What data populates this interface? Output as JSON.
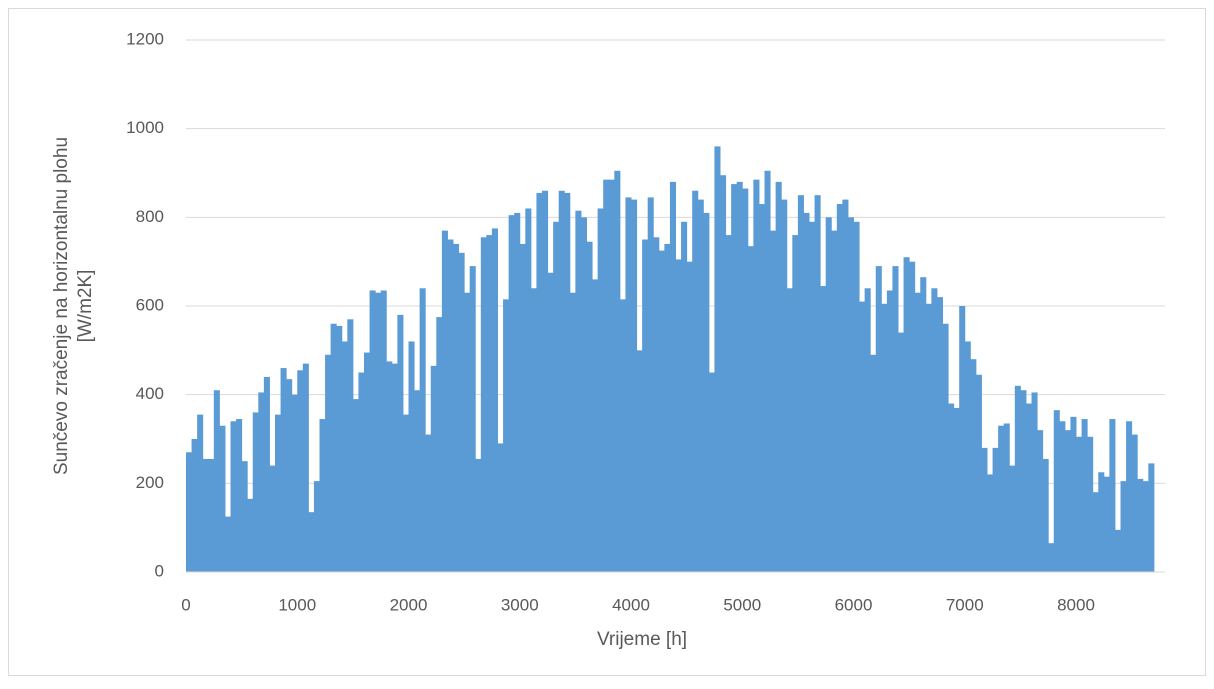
{
  "chart_data": {
    "type": "column",
    "x_label": "Vrijeme [h]",
    "y_label": [
      "Sunčevo zračenje na horizontalnu plohu",
      "[W/m2K]"
    ],
    "color": "#5b9bd5",
    "grid": true,
    "xlim": [
      0,
      8800
    ],
    "xticks": [
      0,
      1000,
      2000,
      3000,
      4000,
      5000,
      6000,
      7000,
      8000
    ],
    "ylim": [
      0,
      1200
    ],
    "yticks": [
      0,
      200,
      400,
      600,
      800,
      1000,
      1200
    ],
    "bar_width": 50,
    "x": [
      0,
      50,
      100,
      150,
      200,
      250,
      300,
      350,
      400,
      450,
      500,
      550,
      600,
      650,
      700,
      750,
      800,
      850,
      900,
      950,
      1000,
      1050,
      1100,
      1150,
      1200,
      1250,
      1300,
      1350,
      1400,
      1450,
      1500,
      1550,
      1600,
      1650,
      1700,
      1750,
      1800,
      1850,
      1900,
      1950,
      2000,
      2050,
      2100,
      2150,
      2200,
      2250,
      2300,
      2350,
      2400,
      2450,
      2500,
      2550,
      2600,
      2650,
      2700,
      2750,
      2800,
      2850,
      2900,
      2950,
      3000,
      3050,
      3100,
      3150,
      3200,
      3250,
      3300,
      3350,
      3400,
      3450,
      3500,
      3550,
      3600,
      3650,
      3700,
      3750,
      3800,
      3850,
      3900,
      3950,
      4000,
      4050,
      4100,
      4150,
      4200,
      4250,
      4300,
      4350,
      4400,
      4450,
      4500,
      4550,
      4600,
      4650,
      4700,
      4750,
      4800,
      4850,
      4900,
      4950,
      5000,
      5050,
      5100,
      5150,
      5200,
      5250,
      5300,
      5350,
      5400,
      5450,
      5500,
      5550,
      5600,
      5650,
      5700,
      5750,
      5800,
      5850,
      5900,
      5950,
      6000,
      6050,
      6100,
      6150,
      6200,
      6250,
      6300,
      6350,
      6400,
      6450,
      6500,
      6550,
      6600,
      6650,
      6700,
      6750,
      6800,
      6850,
      6900,
      6950,
      7000,
      7050,
      7100,
      7150,
      7200,
      7250,
      7300,
      7350,
      7400,
      7450,
      7500,
      7550,
      7600,
      7650,
      7700,
      7750,
      7800,
      7850,
      7900,
      7950,
      8000,
      8050,
      8100,
      8150,
      8200,
      8250,
      8300,
      8350,
      8400,
      8450,
      8500,
      8550,
      8600,
      8650
    ],
    "values": [
      270,
      300,
      355,
      255,
      255,
      410,
      330,
      125,
      340,
      345,
      250,
      165,
      360,
      405,
      440,
      240,
      355,
      460,
      435,
      400,
      455,
      470,
      135,
      205,
      345,
      490,
      560,
      555,
      520,
      570,
      390,
      450,
      495,
      635,
      630,
      635,
      475,
      470,
      580,
      355,
      520,
      410,
      640,
      310,
      465,
      575,
      770,
      750,
      740,
      720,
      630,
      690,
      255,
      755,
      760,
      775,
      290,
      615,
      805,
      810,
      740,
      820,
      640,
      855,
      860,
      675,
      790,
      860,
      855,
      630,
      815,
      800,
      745,
      660,
      820,
      885,
      885,
      905,
      615,
      845,
      840,
      500,
      750,
      845,
      755,
      725,
      740,
      880,
      705,
      790,
      700,
      860,
      840,
      810,
      450,
      960,
      895,
      760,
      875,
      880,
      865,
      735,
      885,
      830,
      905,
      770,
      880,
      840,
      640,
      760,
      850,
      810,
      790,
      850,
      645,
      800,
      770,
      830,
      840,
      800,
      790,
      610,
      640,
      490,
      690,
      605,
      635,
      690,
      540,
      710,
      700,
      630,
      665,
      605,
      640,
      620,
      560,
      380,
      370,
      600,
      520,
      480,
      445,
      280,
      220,
      280,
      330,
      335,
      240,
      420,
      410,
      380,
      405,
      320,
      255,
      65,
      365,
      340,
      320,
      350,
      305,
      345,
      305,
      180,
      225,
      215,
      345,
      95,
      205,
      340,
      310,
      210,
      205,
      245
    ]
  }
}
